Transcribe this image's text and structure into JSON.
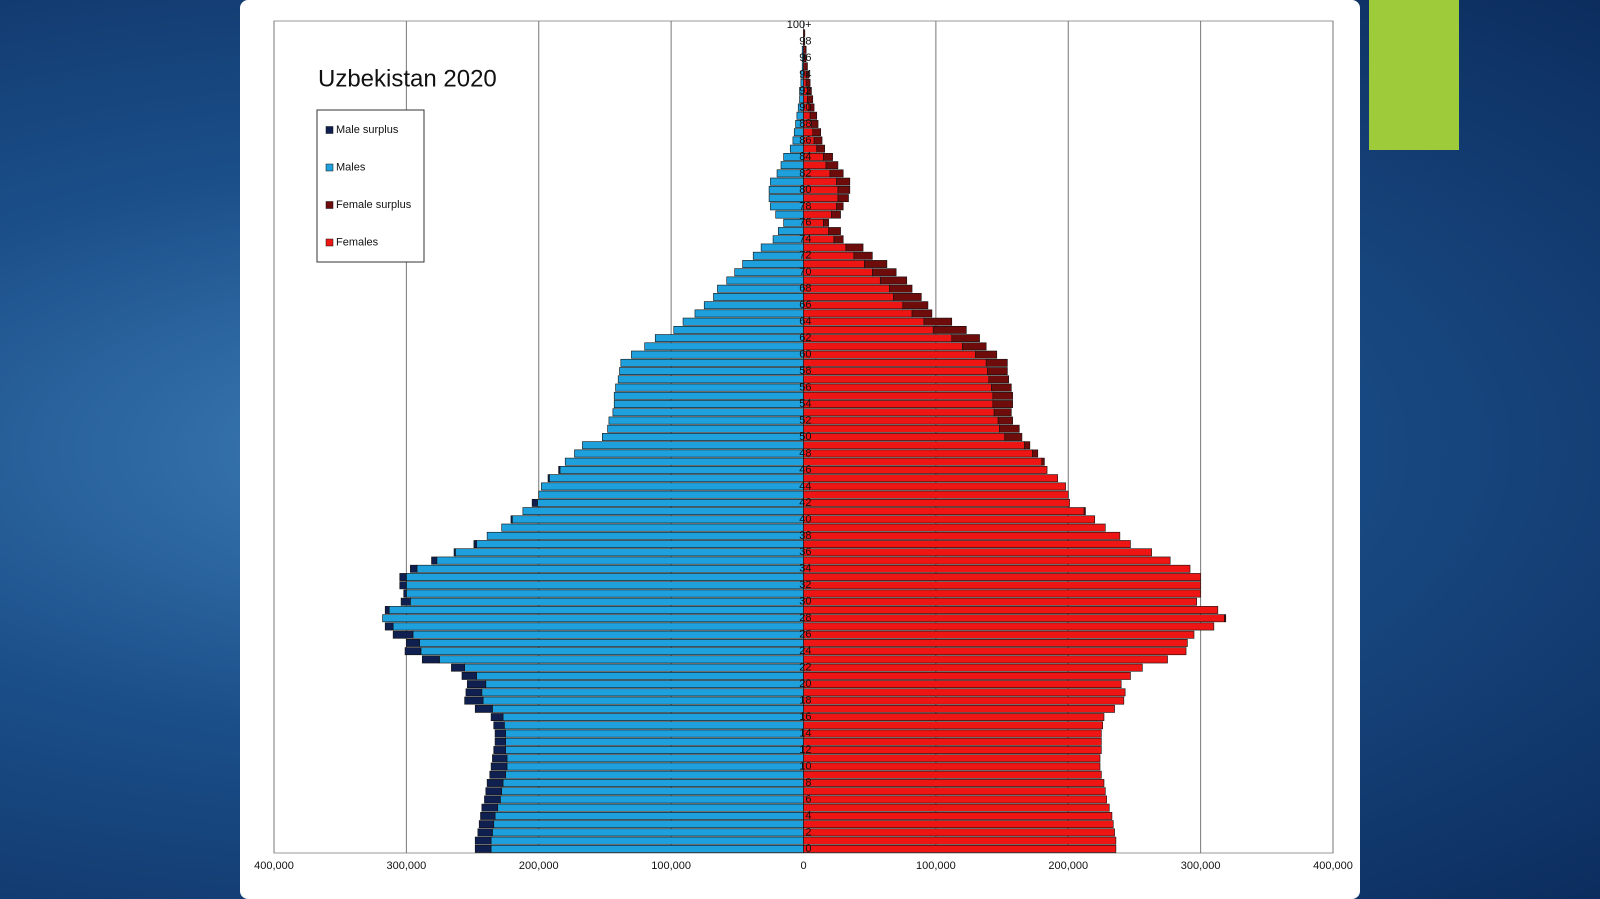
{
  "chart_data": {
    "type": "pyramid",
    "title": "Uzbekistan 2020",
    "categories": [
      "0",
      null,
      "2",
      null,
      "4",
      null,
      "6",
      null,
      "8",
      null,
      "10",
      null,
      "12",
      null,
      "14",
      null,
      "16",
      null,
      "18",
      null,
      "20",
      null,
      "22",
      null,
      "24",
      null,
      "26",
      null,
      "28",
      null,
      "30",
      null,
      "32",
      null,
      "34",
      null,
      "36",
      null,
      "38",
      null,
      "40",
      null,
      "42",
      null,
      "44",
      null,
      "46",
      null,
      "48",
      null,
      "50",
      null,
      "52",
      null,
      "54",
      null,
      "56",
      null,
      "58",
      null,
      "60",
      null,
      "62",
      null,
      "64",
      null,
      "66",
      null,
      "68",
      null,
      "70",
      null,
      "72",
      null,
      "74",
      null,
      "76",
      null,
      "78",
      null,
      "80",
      null,
      "82",
      null,
      "84",
      null,
      "86",
      null,
      "88",
      null,
      "90",
      null,
      "92",
      null,
      "94",
      null,
      "96",
      null,
      "98",
      null,
      "100+"
    ],
    "series": [
      {
        "name": "Male surplus",
        "color": "#0f1f4f",
        "values": [
          12000,
          12000,
          11000,
          11000,
          11000,
          12000,
          12000,
          12000,
          12000,
          12000,
          12000,
          11000,
          9000,
          8000,
          8000,
          8000,
          9000,
          13000,
          14000,
          12000,
          14000,
          11000,
          10000,
          13000,
          12000,
          10000,
          15000,
          6000,
          0,
          3000,
          7000,
          2000,
          5000,
          5000,
          5000,
          4000,
          1000,
          2000,
          0,
          0,
          1000,
          0,
          4000,
          0,
          0,
          1000,
          1000,
          0,
          0,
          0,
          0,
          0,
          0,
          0,
          0,
          0,
          0,
          0,
          0,
          0,
          0,
          0,
          0,
          0,
          0,
          0,
          0,
          0,
          0,
          0,
          0,
          0,
          0,
          0,
          0,
          0,
          0,
          0,
          0,
          0,
          0,
          0,
          0,
          0,
          0,
          0,
          0,
          0,
          0,
          0,
          0,
          0,
          0,
          0,
          0,
          0,
          0,
          0,
          0,
          0,
          0
        ]
      },
      {
        "name": "Males",
        "color": "#1ea0dc",
        "values": [
          236000,
          236000,
          235000,
          234000,
          233000,
          231000,
          229000,
          228000,
          227000,
          225000,
          224000,
          224000,
          225000,
          225000,
          225000,
          226000,
          227000,
          235000,
          242000,
          243000,
          240000,
          247000,
          256000,
          275000,
          289000,
          290000,
          295000,
          310000,
          318000,
          313000,
          297000,
          300000,
          300000,
          300000,
          292000,
          277000,
          263000,
          247000,
          239000,
          228000,
          220000,
          212000,
          201000,
          200000,
          198000,
          192000,
          184000,
          180000,
          173000,
          167000,
          152000,
          148000,
          147000,
          144000,
          143000,
          143000,
          142000,
          140000,
          139000,
          138000,
          130000,
          120000,
          112000,
          98000,
          91000,
          82000,
          75000,
          68000,
          65000,
          58000,
          52000,
          46000,
          38000,
          32000,
          23000,
          19000,
          15000,
          21000,
          25000,
          26000,
          26000,
          25000,
          20000,
          17000,
          15000,
          10000,
          8000,
          7000,
          6000,
          5000,
          4000,
          3000,
          3000,
          2000,
          2000,
          1000,
          1000,
          1000,
          0,
          0,
          0
        ]
      },
      {
        "name": "Female surplus",
        "color": "#6e0b0b",
        "values": [
          0,
          0,
          0,
          0,
          0,
          0,
          0,
          0,
          0,
          0,
          0,
          0,
          0,
          0,
          0,
          0,
          0,
          0,
          0,
          0,
          0,
          0,
          0,
          0,
          0,
          0,
          0,
          0,
          1000,
          0,
          0,
          0,
          0,
          0,
          0,
          0,
          0,
          0,
          0,
          0,
          0,
          1000,
          0,
          0,
          0,
          0,
          0,
          2000,
          4000,
          4000,
          13000,
          15000,
          11000,
          13000,
          15000,
          15000,
          15000,
          15000,
          15000,
          16000,
          16000,
          18000,
          21000,
          25000,
          21000,
          15000,
          19000,
          21000,
          17000,
          20000,
          18000,
          17000,
          14000,
          13000,
          7000,
          9000,
          4000,
          7000,
          5000,
          8000,
          9000,
          10000,
          10000,
          9000,
          7000,
          6000,
          6000,
          6000,
          5000,
          5000,
          4000,
          4000,
          3000,
          3000,
          2000,
          2000,
          1000,
          1000,
          1000,
          1000,
          0
        ]
      },
      {
        "name": "Females",
        "color": "#ee1515",
        "values": [
          236000,
          236000,
          235000,
          234000,
          233000,
          231000,
          229000,
          228000,
          227000,
          225000,
          224000,
          224000,
          225000,
          225000,
          225000,
          226000,
          227000,
          235000,
          242000,
          243000,
          240000,
          247000,
          256000,
          275000,
          289000,
          290000,
          295000,
          310000,
          318000,
          313000,
          297000,
          300000,
          300000,
          300000,
          292000,
          277000,
          263000,
          247000,
          239000,
          228000,
          220000,
          212000,
          201000,
          200000,
          198000,
          192000,
          184000,
          180000,
          173000,
          167000,
          152000,
          148000,
          147000,
          144000,
          143000,
          143000,
          142000,
          140000,
          139000,
          138000,
          130000,
          120000,
          112000,
          98000,
          91000,
          82000,
          75000,
          68000,
          65000,
          58000,
          52000,
          46000,
          38000,
          32000,
          23000,
          19000,
          15000,
          21000,
          25000,
          26000,
          26000,
          25000,
          20000,
          17000,
          15000,
          10000,
          8000,
          7000,
          6000,
          5000,
          4000,
          3000,
          3000,
          2000,
          2000,
          1000,
          1000,
          1000,
          0,
          0,
          0
        ]
      }
    ],
    "xlim": [
      -400000,
      400000
    ],
    "xticks": [
      {
        "value": -400000,
        "label": "400,000"
      },
      {
        "value": -300000,
        "label": "300,000"
      },
      {
        "value": -200000,
        "label": "200,000"
      },
      {
        "value": -100000,
        "label": "100,000"
      },
      0,
      {
        "value": 100000,
        "label": "100,000"
      },
      {
        "value": 200000,
        "label": "200,000"
      },
      {
        "value": 300000,
        "label": "300,000"
      },
      {
        "value": 400000,
        "label": "400,000"
      }
    ],
    "grid": true
  }
}
